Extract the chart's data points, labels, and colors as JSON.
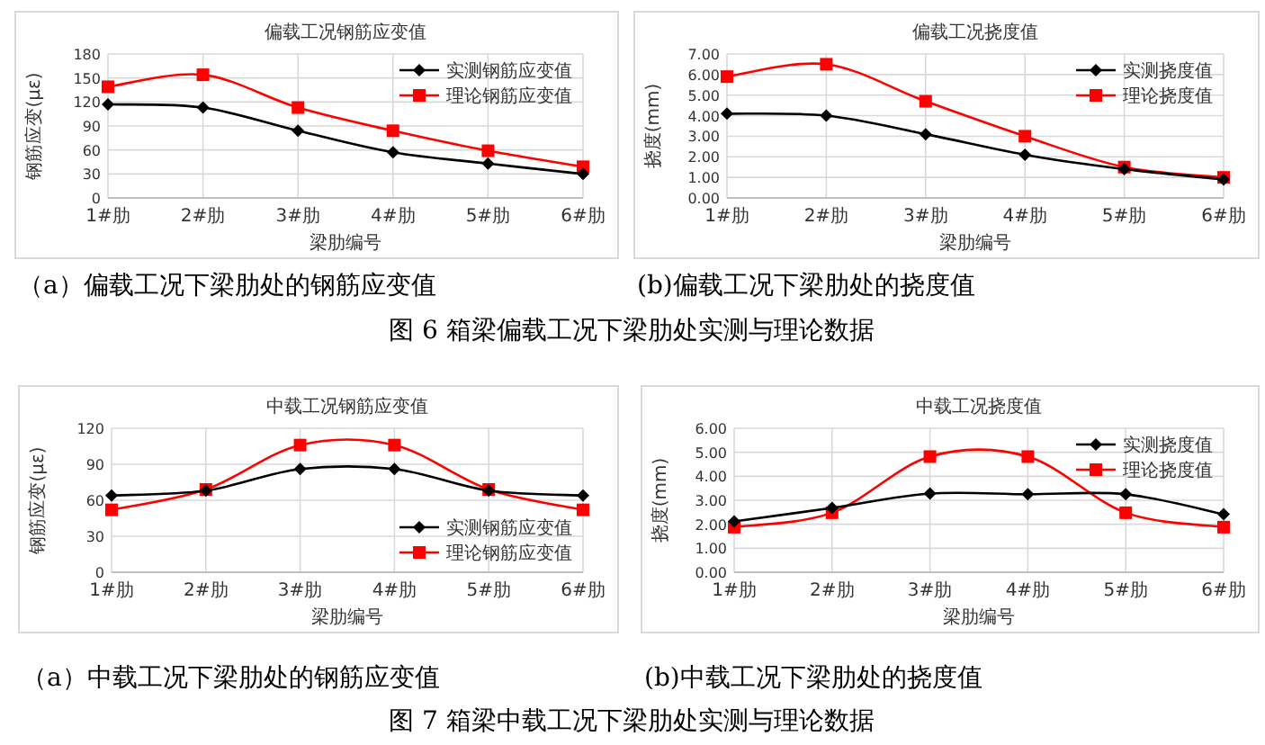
{
  "chart_data": [
    {
      "type": "line",
      "title": "偏载工况钢筋应变值",
      "xlabel": "梁肋编号",
      "ylabel": "钢筋应变(με)",
      "categories": [
        "1#肋",
        "2#肋",
        "3#肋",
        "4#肋",
        "5#肋",
        "6#肋"
      ],
      "series": [
        {
          "name": "实测钢筋应变值",
          "color": "#000000",
          "marker": "diamond",
          "values": [
            117,
            113,
            84,
            57,
            43,
            30
          ]
        },
        {
          "name": "理论钢筋应变值",
          "color": "#ff0000",
          "marker": "square",
          "values": [
            139,
            154,
            113,
            84,
            59,
            39
          ]
        }
      ],
      "ylim": [
        0,
        180
      ],
      "yticks": [
        0,
        30,
        60,
        90,
        120,
        150,
        180
      ],
      "grid": true,
      "legend": "top right",
      "annotations": [
        "（a）偏载工况下梁肋处的钢筋应变值"
      ]
    },
    {
      "type": "line",
      "title": "偏载工况挠度值",
      "xlabel": "梁肋编号",
      "ylabel": "挠度(mm)",
      "categories": [
        "1#肋",
        "2#肋",
        "3#肋",
        "4#肋",
        "5#肋",
        "6#肋"
      ],
      "series": [
        {
          "name": "实测挠度值",
          "color": "#000000",
          "marker": "diamond",
          "values": [
            4.1,
            4.0,
            3.1,
            2.1,
            1.4,
            0.9
          ]
        },
        {
          "name": "理论挠度值",
          "color": "#ff0000",
          "marker": "square",
          "values": [
            5.9,
            6.5,
            4.7,
            3.0,
            1.5,
            1.0
          ]
        }
      ],
      "ylim": [
        0,
        7
      ],
      "yticks": [
        {
          "value": 0,
          "label": "0.00"
        },
        {
          "value": 1,
          "label": "1.00"
        },
        {
          "value": 2,
          "label": "2.00"
        },
        {
          "value": 3,
          "label": "3.00"
        },
        {
          "value": 4,
          "label": "4.00"
        },
        {
          "value": 5,
          "label": "5.00"
        },
        {
          "value": 6,
          "label": "6.00"
        },
        {
          "value": 7,
          "label": "7.00"
        }
      ],
      "grid": true,
      "legend": "top right",
      "annotations": [
        "(b)偏载工况下梁肋处的挠度值",
        "图 6  箱梁偏载工况下梁肋处实测与理论数据"
      ]
    },
    {
      "type": "line",
      "title": "中载工况钢筋应变值",
      "xlabel": "梁肋编号",
      "ylabel": "钢筋应变(με)",
      "categories": [
        "1#肋",
        "2#肋",
        "3#肋",
        "4#肋",
        "5#肋",
        "6#肋"
      ],
      "series": [
        {
          "name": "实测钢筋应变值",
          "color": "#000000",
          "marker": "diamond",
          "values": [
            64,
            68,
            86,
            86,
            68,
            64
          ]
        },
        {
          "name": "理论钢筋应变值",
          "color": "#ff0000",
          "marker": "square",
          "values": [
            52,
            69,
            106,
            106,
            69,
            52
          ]
        }
      ],
      "ylim": [
        0,
        120
      ],
      "yticks": [
        0,
        30,
        60,
        90,
        120
      ],
      "grid": true,
      "legend": "bottom right",
      "annotations": [
        "（a）中载工况下梁肋处的钢筋应变值"
      ]
    },
    {
      "type": "line",
      "title": "中载工况挠度值",
      "xlabel": "梁肋编号",
      "ylabel": "挠度(mm)",
      "categories": [
        "1#肋",
        "2#肋",
        "3#肋",
        "4#肋",
        "5#肋",
        "6#肋"
      ],
      "series": [
        {
          "name": "实测挠度值",
          "color": "#000000",
          "marker": "diamond",
          "values": [
            2.12,
            2.68,
            3.28,
            3.25,
            3.25,
            2.42
          ]
        },
        {
          "name": "理论挠度值",
          "color": "#ff0000",
          "marker": "square",
          "values": [
            1.88,
            2.48,
            4.82,
            4.82,
            2.48,
            1.88
          ]
        }
      ],
      "ylim": [
        0,
        6
      ],
      "yticks": [
        {
          "value": 0,
          "label": "0.00"
        },
        {
          "value": 1,
          "label": "1.00"
        },
        {
          "value": 2,
          "label": "2.00"
        },
        {
          "value": 3,
          "label": "3.00"
        },
        {
          "value": 4,
          "label": "4.00"
        },
        {
          "value": 5,
          "label": "5.00"
        },
        {
          "value": 6,
          "label": "6.00"
        }
      ],
      "grid": true,
      "legend": "top right",
      "annotations": [
        "(b)中载工况下梁肋处的挠度值",
        "图 7  箱梁中载工况下梁肋处实测与理论数据"
      ]
    }
  ]
}
